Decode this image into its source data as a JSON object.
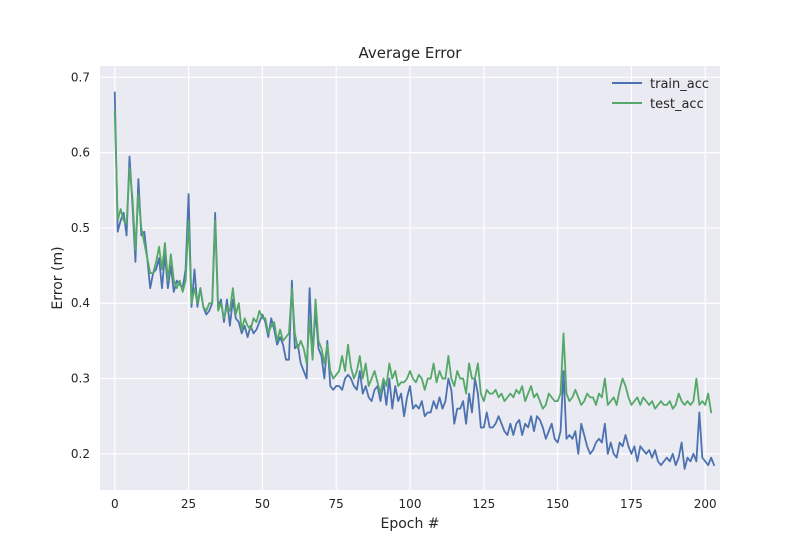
{
  "chart_data": {
    "type": "line",
    "title": "Average Error",
    "xlabel": "Epoch #",
    "ylabel": "Error (m)",
    "xlim": [
      -5,
      205
    ],
    "ylim": [
      0.152,
      0.715
    ],
    "xticks": [
      0,
      25,
      50,
      75,
      100,
      125,
      150,
      175,
      200
    ],
    "yticks": [
      0.2,
      0.3,
      0.4,
      0.5,
      0.6,
      0.7
    ],
    "ytick_labels": [
      "0.2",
      "0.3",
      "0.4",
      "0.5",
      "0.6",
      "0.7"
    ],
    "grid": true,
    "legend_position": "top-right",
    "series": [
      {
        "name": "train_acc",
        "color": "#4c72b0",
        "values": [
          0.68,
          0.495,
          0.51,
          0.52,
          0.49,
          0.595,
          0.53,
          0.455,
          0.565,
          0.49,
          0.495,
          0.46,
          0.42,
          0.44,
          0.445,
          0.46,
          0.42,
          0.465,
          0.42,
          0.45,
          0.415,
          0.43,
          0.425,
          0.42,
          0.445,
          0.545,
          0.395,
          0.445,
          0.395,
          0.42,
          0.395,
          0.385,
          0.39,
          0.4,
          0.52,
          0.395,
          0.405,
          0.375,
          0.405,
          0.37,
          0.405,
          0.38,
          0.375,
          0.36,
          0.37,
          0.355,
          0.37,
          0.36,
          0.365,
          0.375,
          0.385,
          0.375,
          0.355,
          0.38,
          0.365,
          0.345,
          0.355,
          0.345,
          0.325,
          0.325,
          0.43,
          0.34,
          0.345,
          0.32,
          0.31,
          0.3,
          0.42,
          0.33,
          0.39,
          0.34,
          0.33,
          0.3,
          0.35,
          0.29,
          0.285,
          0.29,
          0.29,
          0.285,
          0.3,
          0.305,
          0.3,
          0.29,
          0.285,
          0.31,
          0.28,
          0.29,
          0.275,
          0.27,
          0.285,
          0.29,
          0.27,
          0.295,
          0.265,
          0.3,
          0.26,
          0.29,
          0.27,
          0.28,
          0.25,
          0.275,
          0.29,
          0.26,
          0.265,
          0.26,
          0.27,
          0.25,
          0.255,
          0.255,
          0.27,
          0.26,
          0.275,
          0.26,
          0.27,
          0.3,
          0.285,
          0.24,
          0.26,
          0.26,
          0.27,
          0.24,
          0.28,
          0.255,
          0.3,
          0.28,
          0.235,
          0.235,
          0.255,
          0.235,
          0.235,
          0.24,
          0.25,
          0.24,
          0.23,
          0.225,
          0.24,
          0.225,
          0.24,
          0.245,
          0.225,
          0.24,
          0.235,
          0.25,
          0.23,
          0.25,
          0.245,
          0.235,
          0.22,
          0.23,
          0.24,
          0.22,
          0.215,
          0.23,
          0.31,
          0.22,
          0.225,
          0.22,
          0.23,
          0.2,
          0.24,
          0.225,
          0.21,
          0.2,
          0.205,
          0.215,
          0.22,
          0.215,
          0.24,
          0.2,
          0.215,
          0.2,
          0.195,
          0.215,
          0.21,
          0.225,
          0.21,
          0.2,
          0.21,
          0.19,
          0.21,
          0.205,
          0.2,
          0.205,
          0.195,
          0.205,
          0.19,
          0.185,
          0.19,
          0.195,
          0.19,
          0.2,
          0.185,
          0.195,
          0.215,
          0.18,
          0.195,
          0.19,
          0.2,
          0.19,
          0.255,
          0.195,
          0.19,
          0.185,
          0.195,
          0.185
        ]
      },
      {
        "name": "test_acc",
        "color": "#55a868",
        "values": [
          0.655,
          0.51,
          0.525,
          0.51,
          0.505,
          0.58,
          0.54,
          0.47,
          0.545,
          0.5,
          0.48,
          0.46,
          0.44,
          0.44,
          0.455,
          0.475,
          0.445,
          0.48,
          0.43,
          0.465,
          0.43,
          0.42,
          0.43,
          0.415,
          0.43,
          0.51,
          0.4,
          0.42,
          0.4,
          0.42,
          0.395,
          0.39,
          0.4,
          0.4,
          0.51,
          0.39,
          0.4,
          0.38,
          0.395,
          0.39,
          0.42,
          0.385,
          0.4,
          0.365,
          0.38,
          0.37,
          0.365,
          0.38,
          0.375,
          0.39,
          0.38,
          0.38,
          0.36,
          0.37,
          0.375,
          0.35,
          0.365,
          0.35,
          0.355,
          0.36,
          0.42,
          0.36,
          0.34,
          0.35,
          0.34,
          0.32,
          0.38,
          0.325,
          0.405,
          0.35,
          0.34,
          0.32,
          0.345,
          0.31,
          0.3,
          0.305,
          0.31,
          0.33,
          0.31,
          0.345,
          0.315,
          0.3,
          0.31,
          0.33,
          0.3,
          0.32,
          0.29,
          0.3,
          0.31,
          0.295,
          0.28,
          0.3,
          0.29,
          0.32,
          0.3,
          0.31,
          0.29,
          0.295,
          0.295,
          0.3,
          0.31,
          0.3,
          0.295,
          0.305,
          0.3,
          0.285,
          0.3,
          0.3,
          0.32,
          0.295,
          0.31,
          0.3,
          0.3,
          0.33,
          0.3,
          0.29,
          0.31,
          0.3,
          0.3,
          0.28,
          0.32,
          0.3,
          0.3,
          0.32,
          0.28,
          0.27,
          0.285,
          0.28,
          0.28,
          0.285,
          0.275,
          0.28,
          0.27,
          0.275,
          0.28,
          0.275,
          0.285,
          0.28,
          0.29,
          0.27,
          0.28,
          0.29,
          0.275,
          0.28,
          0.27,
          0.26,
          0.265,
          0.28,
          0.275,
          0.27,
          0.27,
          0.28,
          0.36,
          0.28,
          0.27,
          0.275,
          0.285,
          0.275,
          0.265,
          0.27,
          0.28,
          0.275,
          0.275,
          0.265,
          0.28,
          0.275,
          0.3,
          0.265,
          0.27,
          0.275,
          0.265,
          0.285,
          0.3,
          0.29,
          0.275,
          0.265,
          0.27,
          0.275,
          0.265,
          0.275,
          0.27,
          0.265,
          0.27,
          0.26,
          0.265,
          0.27,
          0.265,
          0.265,
          0.27,
          0.26,
          0.265,
          0.28,
          0.27,
          0.265,
          0.27,
          0.265,
          0.27,
          0.3,
          0.265,
          0.27,
          0.265,
          0.28,
          0.255
        ]
      }
    ]
  }
}
